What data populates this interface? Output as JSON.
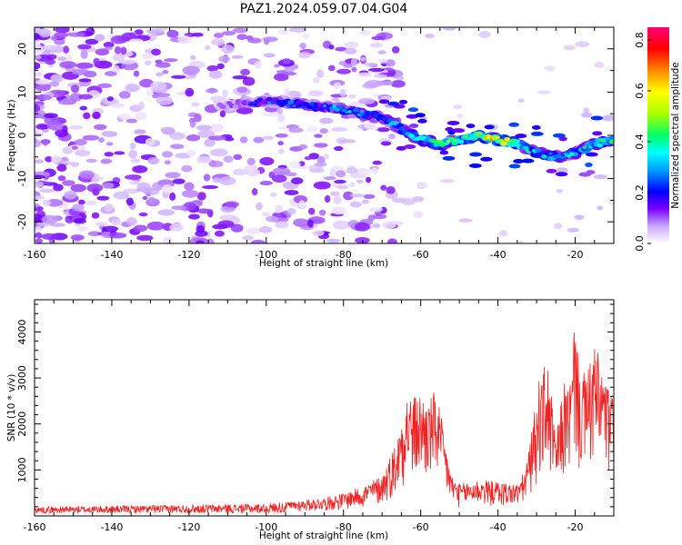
{
  "title": "PAZ1.2024.059.07.04.G04",
  "chart_data": [
    {
      "type": "heatmap",
      "xlabel": "Height of straight line (km)",
      "ylabel": "Frequency (Hz)",
      "xlim": [
        -160,
        -10
      ],
      "ylim": [
        -25,
        25
      ],
      "x_ticks": [
        -160,
        -140,
        -120,
        -100,
        -80,
        -60,
        -40,
        -20
      ],
      "y_ticks": [
        -20,
        -10,
        0,
        10,
        20
      ],
      "colorbar": {
        "label": "Normalized spectral amplitude",
        "range": [
          0,
          0.85
        ],
        "ticks": [
          "0.0",
          "0.2",
          "0.4",
          "0.6",
          "0.8"
        ],
        "colors": [
          "#ffffff",
          "#c9a8ff",
          "#7a00ff",
          "#0000ff",
          "#00ffff",
          "#00ff66",
          "#aaff00",
          "#ffff00",
          "#ff8800",
          "#ff0000",
          "#ff0077"
        ]
      },
      "ridge": {
        "description_points_x": [
          -110,
          -100,
          -90,
          -80,
          -70,
          -64,
          -60,
          -55,
          -50,
          -45,
          -40,
          -35,
          -30,
          -25,
          -20,
          -15,
          -10
        ],
        "frequency_hz": [
          7,
          8,
          7,
          6,
          4,
          1,
          -1,
          -2,
          -1,
          0,
          -1,
          -2,
          -4,
          -5,
          -4,
          -2,
          -1
        ],
        "peak_amplitude": [
          0.1,
          0.25,
          0.28,
          0.3,
          0.3,
          0.35,
          0.4,
          0.6,
          0.45,
          0.7,
          0.65,
          0.55,
          0.35,
          0.4,
          0.35,
          0.45,
          0.5
        ]
      }
    },
    {
      "type": "line",
      "xlabel": "Height of straight line (km)",
      "ylabel": "SNR (10 * v/v)",
      "xlim": [
        -160,
        -10
      ],
      "ylim": [
        0,
        4700
      ],
      "x_ticks": [
        -160,
        -140,
        -120,
        -100,
        -80,
        -60,
        -40,
        -20
      ],
      "y_ticks": [
        1000,
        2000,
        3000,
        4000
      ],
      "color": "#ee2222",
      "envelope": {
        "x": [
          -160,
          -100,
          -85,
          -80,
          -75,
          -70,
          -66,
          -64,
          -62,
          -60,
          -58,
          -56,
          -54,
          -52,
          -50,
          -45,
          -40,
          -35,
          -33,
          -31,
          -29,
          -27,
          -25,
          -23,
          -21,
          -20,
          -19,
          -17,
          -15,
          -13,
          -11,
          -10
        ],
        "y": [
          180,
          250,
          400,
          500,
          650,
          900,
          1700,
          2750,
          2600,
          2700,
          2500,
          2800,
          1800,
          900,
          700,
          800,
          750,
          700,
          1000,
          2000,
          3200,
          3300,
          1700,
          2900,
          3000,
          4700,
          3200,
          3100,
          3750,
          3300,
          2700,
          2600
        ]
      }
    }
  ]
}
